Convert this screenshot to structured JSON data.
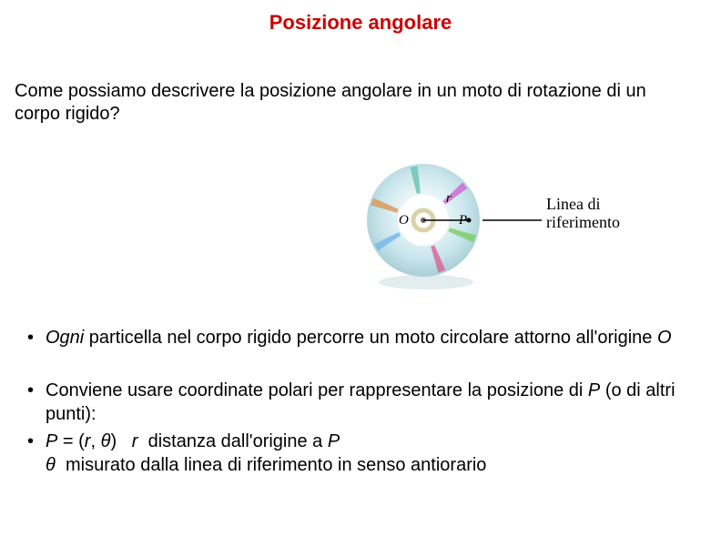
{
  "title": {
    "text": "Posizione angolare",
    "color": "#cc0000"
  },
  "intro": "Come possiamo descrivere la posizione angolare in un moto di rotazione di  un  corpo  rigido?",
  "figure": {
    "ref_line_label": "Linea di\nriferimento",
    "r": "r",
    "O": "O",
    "P": "P",
    "disc": {
      "outer_r": 62,
      "colors": {
        "ring_base": "#d8ebef",
        "ring_mid": "#bfe1e8",
        "center_fill": "#ffffff",
        "hub_ring": "#d9d2a8",
        "shadow": "#b0c8cd"
      },
      "streaks": [
        {
          "angle": 20,
          "color": "#7fcf6a"
        },
        {
          "angle": 70,
          "color": "#d8679a"
        },
        {
          "angle": 150,
          "color": "#79b8e8"
        },
        {
          "angle": 200,
          "color": "#d99a5a"
        },
        {
          "angle": 260,
          "color": "#6fc7b2"
        },
        {
          "angle": 320,
          "color": "#c86fd1"
        }
      ]
    }
  },
  "bullets": [
    {
      "html": "<span class='ital'>Ogni</span>  particella nel  corpo  rigido percorre  un  moto circolare  attorno all'origine <span class='ital'>O</span>"
    },
    {
      "html": "Conviene usare coordinate polari per rappresentare la posizione di <span class='ital'>P</span> (o di altri punti):"
    },
    {
      "html": "<span class='ital'>P</span> = (<span class='ital'>r</span>, <span class='ital'>θ</span>)&nbsp;&nbsp;&nbsp;<span class='ital'>r</span>&nbsp;&nbsp;distanza dall'origine a <span class='ital'>P</span><br><span class='ital'>θ</span>&nbsp;&nbsp;misurato dalla linea di riferimento in senso antiorario"
    }
  ]
}
